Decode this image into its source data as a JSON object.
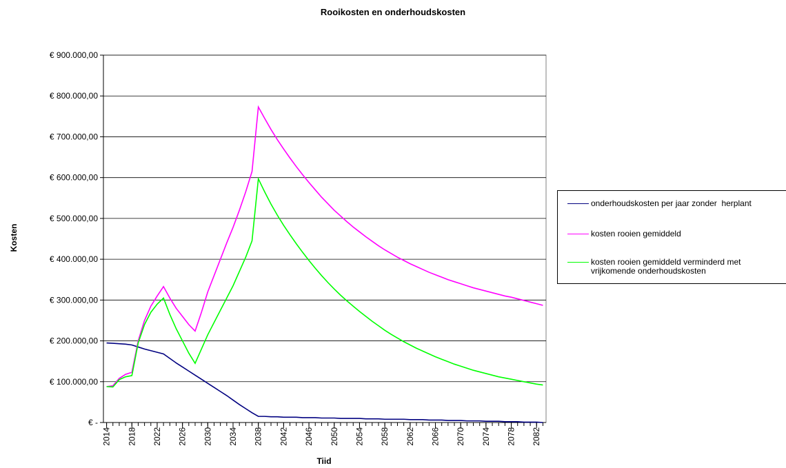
{
  "chart_data": {
    "type": "line",
    "title": "Rooikosten en onderhoudskosten",
    "x_label": "Tiid",
    "y_label": "Kosten",
    "x": [
      2014,
      2015,
      2016,
      2017,
      2018,
      2019,
      2020,
      2021,
      2022,
      2023,
      2024,
      2025,
      2026,
      2027,
      2028,
      2029,
      2030,
      2031,
      2032,
      2033,
      2034,
      2035,
      2036,
      2037,
      2038,
      2039,
      2040,
      2041,
      2042,
      2043,
      2044,
      2045,
      2046,
      2047,
      2048,
      2049,
      2050,
      2051,
      2052,
      2053,
      2054,
      2055,
      2056,
      2057,
      2058,
      2059,
      2060,
      2061,
      2062,
      2063,
      2064,
      2065,
      2066,
      2067,
      2068,
      2069,
      2070,
      2071,
      2072,
      2073,
      2074,
      2075,
      2076,
      2077,
      2078,
      2079,
      2080,
      2081,
      2082,
      2083
    ],
    "xlim": [
      2013.5,
      2083.5
    ],
    "xticks": [
      2014,
      2018,
      2022,
      2026,
      2030,
      2034,
      2038,
      2042,
      2046,
      2050,
      2054,
      2058,
      2062,
      2066,
      2070,
      2074,
      2078,
      2082
    ],
    "ylim": [
      0,
      900000
    ],
    "yticks": [
      {
        "value": 0,
        "label": "€ -"
      },
      {
        "value": 100000,
        "label": "€ 100.000,00"
      },
      {
        "value": 200000,
        "label": "€ 200.000,00"
      },
      {
        "value": 300000,
        "label": "€ 300.000,00"
      },
      {
        "value": 400000,
        "label": "€ 400.000,00"
      },
      {
        "value": 500000,
        "label": "€ 500.000,00"
      },
      {
        "value": 600000,
        "label": "€ 600.000,00"
      },
      {
        "value": 700000,
        "label": "€ 700.000,00"
      },
      {
        "value": 800000,
        "label": "€ 800.000,00"
      },
      {
        "value": 900000,
        "label": "€ 900.000,00"
      }
    ],
    "grid": true,
    "legend": "right",
    "series": [
      {
        "name": "onderhoudskosten per jaar zonder  herplant",
        "color": "#000080",
        "values": [
          195000,
          194000,
          193000,
          192000,
          190000,
          185000,
          180000,
          176000,
          172000,
          168000,
          157000,
          146000,
          136000,
          126000,
          116000,
          106000,
          96000,
          86000,
          76000,
          66000,
          55000,
          44000,
          34000,
          24000,
          15000,
          15000,
          14000,
          14000,
          13000,
          13000,
          13000,
          12000,
          12000,
          12000,
          11000,
          11000,
          11000,
          10000,
          10000,
          10000,
          10000,
          9000,
          9000,
          9000,
          8000,
          8000,
          8000,
          8000,
          7000,
          7000,
          7000,
          6000,
          6000,
          6000,
          5000,
          5000,
          5000,
          4000,
          4000,
          4000,
          3000,
          3000,
          3000,
          2000,
          2000,
          2000,
          1000,
          1000,
          1000,
          0
        ]
      },
      {
        "name": "kosten rooien gemiddeld",
        "color": "#ff00ff",
        "values": [
          88000,
          90000,
          108000,
          118000,
          123000,
          200000,
          250000,
          285000,
          310000,
          333000,
          305000,
          280000,
          260000,
          240000,
          224000,
          270000,
          320000,
          360000,
          400000,
          440000,
          478000,
          520000,
          565000,
          615000,
          773000,
          745000,
          718000,
          693000,
          670000,
          648000,
          627000,
          607000,
          588000,
          570000,
          552000,
          536000,
          520000,
          506000,
          492000,
          479000,
          467000,
          455000,
          444000,
          433000,
          423000,
          414000,
          405000,
          397000,
          389000,
          382000,
          375000,
          368000,
          362000,
          356000,
          350000,
          345000,
          340000,
          335000,
          330000,
          326000,
          322000,
          318000,
          314000,
          310000,
          307000,
          303000,
          299000,
          295000,
          291000,
          287000
        ]
      },
      {
        "name": "kosten rooien gemiddeld verminderd met vrijkomende onderhoudskosten",
        "color": "#00ff00",
        "values": [
          88000,
          87000,
          105000,
          112000,
          115000,
          195000,
          240000,
          270000,
          290000,
          305000,
          265000,
          230000,
          200000,
          170000,
          145000,
          180000,
          215000,
          245000,
          275000,
          305000,
          335000,
          370000,
          405000,
          445000,
          597000,
          565000,
          535000,
          508000,
          483000,
          460000,
          438000,
          417000,
          397000,
          378000,
          360000,
          343000,
          327000,
          312000,
          298000,
          285000,
          272000,
          260000,
          248000,
          237000,
          226000,
          216000,
          207000,
          198000,
          190000,
          182000,
          175000,
          168000,
          161000,
          155000,
          149000,
          143000,
          138000,
          133000,
          128000,
          124000,
          120000,
          116000,
          112000,
          109000,
          106000,
          103000,
          100000,
          97000,
          94000,
          92000
        ]
      }
    ]
  }
}
